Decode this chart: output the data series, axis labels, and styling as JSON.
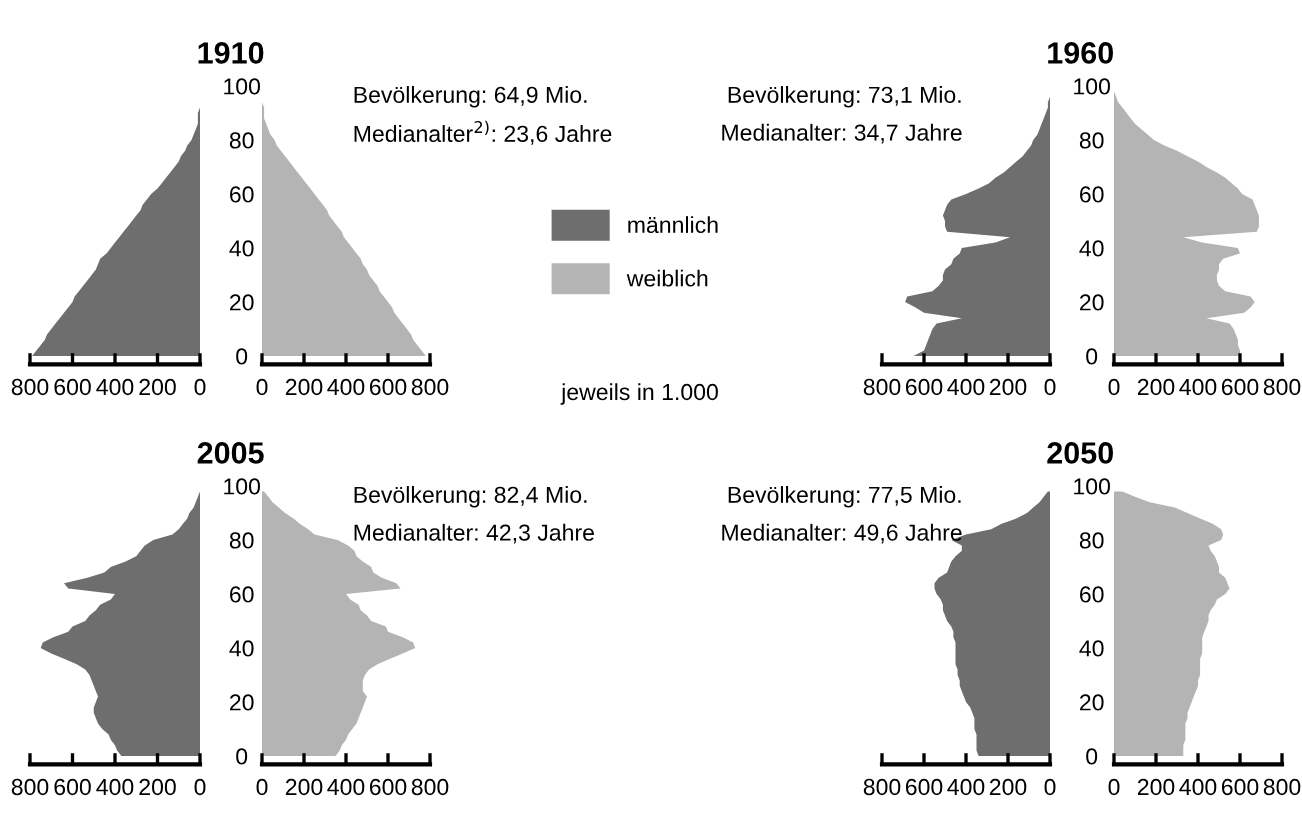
{
  "chart_data": [
    {
      "type": "area",
      "orientation": "horizontal",
      "title": "1910",
      "x": [
        0,
        2,
        4,
        6,
        8,
        10,
        12,
        14,
        16,
        18,
        20,
        22,
        24,
        26,
        28,
        30,
        32,
        34,
        36,
        38,
        40,
        42,
        44,
        46,
        48,
        50,
        52,
        54,
        56,
        58,
        60,
        62,
        64,
        66,
        68,
        70,
        72,
        74,
        76,
        78,
        80,
        82,
        84,
        86,
        88,
        90,
        92,
        94,
        96,
        98
      ],
      "xlim": [
        800,
        0
      ],
      "xticks": [
        800,
        600,
        400,
        200,
        0
      ],
      "ylim": [
        0,
        100
      ],
      "yticks": [
        0,
        20,
        40,
        60,
        80,
        100
      ],
      "series": [
        {
          "name": "männlich",
          "color": "#6e6e6e",
          "values": [
            790,
            770,
            750,
            730,
            720,
            700,
            680,
            660,
            640,
            620,
            600,
            590,
            570,
            550,
            530,
            510,
            490,
            480,
            470,
            440,
            420,
            400,
            380,
            360,
            340,
            320,
            300,
            280,
            270,
            250,
            230,
            200,
            180,
            160,
            140,
            120,
            100,
            90,
            70,
            60,
            40,
            30,
            20,
            10,
            10,
            10,
            0,
            0,
            0,
            0
          ]
        }
      ]
    },
    {
      "type": "area",
      "orientation": "horizontal",
      "x": [
        0,
        2,
        4,
        6,
        8,
        10,
        12,
        14,
        16,
        18,
        20,
        22,
        24,
        26,
        28,
        30,
        32,
        34,
        36,
        38,
        40,
        42,
        44,
        46,
        48,
        50,
        52,
        54,
        56,
        58,
        60,
        62,
        64,
        66,
        68,
        70,
        72,
        74,
        76,
        78,
        80,
        82,
        84,
        86,
        88,
        90,
        92,
        94,
        96,
        98
      ],
      "xlim": [
        0,
        800
      ],
      "xticks": [
        0,
        200,
        400,
        600,
        800
      ],
      "ylim": [
        0,
        100
      ],
      "yticks": [
        0,
        20,
        40,
        60,
        80,
        100
      ],
      "tick_labels": "x",
      "legend": "right",
      "annotations": [
        "Bevölkerung: 64,9 Mio.",
        "Medianalter$^{2)}$: 23,6 Jahre",
        "jeweils in 1.000"
      ],
      "series": [
        {
          "name": "weiblich",
          "color": "#b4b4b4",
          "values": [
            780,
            760,
            740,
            720,
            710,
            690,
            670,
            650,
            630,
            620,
            600,
            580,
            560,
            550,
            530,
            510,
            500,
            480,
            470,
            450,
            430,
            410,
            390,
            380,
            360,
            340,
            320,
            310,
            290,
            270,
            250,
            230,
            210,
            190,
            170,
            150,
            130,
            110,
            90,
            70,
            60,
            40,
            30,
            20,
            10,
            10,
            10,
            0,
            0,
            0
          ]
        }
      ]
    },
    {
      "type": "area",
      "orientation": "horizontal",
      "title": "1960",
      "x": [
        0,
        2,
        4,
        6,
        8,
        10,
        12,
        14,
        16,
        18,
        20,
        22,
        24,
        26,
        28,
        30,
        32,
        34,
        36,
        38,
        40,
        42,
        44,
        46,
        48,
        50,
        52,
        54,
        56,
        58,
        60,
        62,
        64,
        66,
        68,
        70,
        72,
        74,
        76,
        78,
        80,
        82,
        84,
        86,
        88,
        90,
        92,
        94,
        96,
        98
      ],
      "xlim": [
        800,
        0
      ],
      "xticks": [
        800,
        600,
        400,
        200,
        0
      ],
      "ylim": [
        0,
        100
      ],
      "yticks": [
        0,
        20,
        40,
        60,
        80,
        100
      ],
      "annotations": [
        "Bevölkerung: 73,1 Mio.",
        "Medianalter: 34,7 Jahre"
      ],
      "series": [
        {
          "color": "#6e6e6e",
          "values": [
            650,
            600,
            590,
            580,
            570,
            560,
            540,
            420,
            600,
            640,
            690,
            680,
            560,
            530,
            510,
            510,
            500,
            470,
            460,
            430,
            420,
            260,
            190,
            490,
            500,
            500,
            510,
            500,
            490,
            470,
            400,
            340,
            290,
            260,
            220,
            190,
            160,
            130,
            110,
            90,
            80,
            60,
            50,
            40,
            30,
            20,
            10,
            10,
            0,
            0
          ]
        }
      ]
    },
    {
      "type": "area",
      "orientation": "horizontal",
      "x": [
        0,
        2,
        4,
        6,
        8,
        10,
        12,
        14,
        16,
        18,
        20,
        22,
        24,
        26,
        28,
        30,
        32,
        34,
        36,
        38,
        40,
        42,
        44,
        46,
        48,
        50,
        52,
        54,
        56,
        58,
        60,
        62,
        64,
        66,
        68,
        70,
        72,
        74,
        76,
        78,
        80,
        82,
        84,
        86,
        88,
        90,
        92,
        94,
        96,
        98
      ],
      "xlim": [
        0,
        800
      ],
      "xticks": [
        0,
        200,
        400,
        600,
        800
      ],
      "ylim": [
        0,
        100
      ],
      "yticks": [
        0,
        20,
        40,
        60,
        80,
        100
      ],
      "tick_labels": "x",
      "series": [
        {
          "color": "#b4b4b4",
          "values": [
            600,
            600,
            590,
            590,
            580,
            570,
            550,
            440,
            620,
            650,
            670,
            650,
            530,
            500,
            490,
            490,
            500,
            500,
            520,
            600,
            590,
            420,
            330,
            680,
            690,
            690,
            690,
            680,
            670,
            660,
            610,
            590,
            560,
            530,
            490,
            440,
            400,
            350,
            300,
            240,
            190,
            160,
            130,
            100,
            80,
            60,
            40,
            20,
            10,
            0
          ]
        }
      ]
    },
    {
      "type": "area",
      "orientation": "horizontal",
      "title": "2005",
      "x": [
        0,
        2,
        4,
        6,
        8,
        10,
        12,
        14,
        16,
        18,
        20,
        22,
        24,
        26,
        28,
        30,
        32,
        34,
        36,
        38,
        40,
        42,
        44,
        46,
        48,
        50,
        52,
        54,
        56,
        58,
        60,
        62,
        64,
        66,
        68,
        70,
        72,
        74,
        76,
        78,
        80,
        82,
        84,
        86,
        88,
        90,
        92,
        94,
        96,
        98
      ],
      "xlim": [
        800,
        0
      ],
      "xticks": [
        800,
        600,
        400,
        200,
        0
      ],
      "ylim": [
        0,
        100
      ],
      "yticks": [
        0,
        20,
        40,
        60,
        80,
        100
      ],
      "series": [
        {
          "color": "#6e6e6e",
          "values": [
            370,
            390,
            400,
            420,
            430,
            460,
            480,
            490,
            500,
            500,
            490,
            480,
            490,
            500,
            510,
            520,
            540,
            580,
            640,
            700,
            750,
            740,
            690,
            620,
            600,
            540,
            520,
            490,
            470,
            420,
            400,
            620,
            640,
            530,
            450,
            420,
            350,
            300,
            280,
            260,
            220,
            130,
            100,
            80,
            60,
            50,
            30,
            20,
            10,
            0
          ]
        }
      ]
    },
    {
      "type": "area",
      "orientation": "horizontal",
      "x": [
        0,
        2,
        4,
        6,
        8,
        10,
        12,
        14,
        16,
        18,
        20,
        22,
        24,
        26,
        28,
        30,
        32,
        34,
        36,
        38,
        40,
        42,
        44,
        46,
        48,
        50,
        52,
        54,
        56,
        58,
        60,
        62,
        64,
        66,
        68,
        70,
        72,
        74,
        76,
        78,
        80,
        82,
        84,
        86,
        88,
        90,
        92,
        94,
        96,
        98
      ],
      "xlim": [
        0,
        800
      ],
      "xticks": [
        0,
        200,
        400,
        600,
        800
      ],
      "ylim": [
        0,
        100
      ],
      "yticks": [
        0,
        20,
        40,
        60,
        80,
        100
      ],
      "tick_labels": "x",
      "annotations": [
        "Bevölkerung: 82,4 Mio.",
        "Medianalter: 42,3 Jahre"
      ],
      "series": [
        {
          "color": "#b4b4b4",
          "values": [
            350,
            370,
            380,
            400,
            410,
            430,
            450,
            460,
            470,
            480,
            490,
            500,
            480,
            480,
            480,
            490,
            510,
            550,
            610,
            670,
            730,
            720,
            670,
            600,
            590,
            520,
            500,
            470,
            460,
            420,
            400,
            660,
            640,
            570,
            530,
            520,
            480,
            450,
            440,
            410,
            360,
            250,
            220,
            180,
            150,
            110,
            80,
            50,
            30,
            10
          ]
        }
      ]
    },
    {
      "type": "area",
      "orientation": "horizontal",
      "title": "2050",
      "x": [
        0,
        2,
        4,
        6,
        8,
        10,
        12,
        14,
        16,
        18,
        20,
        22,
        24,
        26,
        28,
        30,
        32,
        34,
        36,
        38,
        40,
        42,
        44,
        46,
        48,
        50,
        52,
        54,
        56,
        58,
        60,
        62,
        64,
        66,
        68,
        70,
        72,
        74,
        76,
        78,
        80,
        82,
        84,
        86,
        88,
        90,
        92,
        94,
        96,
        98
      ],
      "xlim": [
        800,
        0
      ],
      "xticks": [
        800,
        600,
        400,
        200,
        0
      ],
      "ylim": [
        0,
        100
      ],
      "yticks": [
        0,
        20,
        40,
        60,
        80,
        100
      ],
      "annotations": [
        "Bevölkerung: 77,5 Mio.",
        "Medianalter: 49,6 Jahre"
      ],
      "series": [
        {
          "color": "#6e6e6e",
          "values": [
            340,
            350,
            350,
            350,
            350,
            360,
            360,
            360,
            370,
            380,
            400,
            410,
            420,
            430,
            430,
            440,
            440,
            450,
            450,
            450,
            450,
            450,
            460,
            460,
            470,
            490,
            500,
            510,
            510,
            520,
            540,
            550,
            550,
            530,
            490,
            480,
            470,
            450,
            420,
            420,
            470,
            400,
            280,
            230,
            160,
            110,
            80,
            50,
            30,
            10
          ]
        }
      ]
    },
    {
      "type": "area",
      "orientation": "horizontal",
      "x": [
        0,
        2,
        4,
        6,
        8,
        10,
        12,
        14,
        16,
        18,
        20,
        22,
        24,
        26,
        28,
        30,
        32,
        34,
        36,
        38,
        40,
        42,
        44,
        46,
        48,
        50,
        52,
        54,
        56,
        58,
        60,
        62,
        64,
        66,
        68,
        70,
        72,
        74,
        76,
        78,
        80,
        82,
        84,
        86,
        88,
        90,
        92,
        94,
        96,
        98
      ],
      "xlim": [
        0,
        800
      ],
      "xticks": [
        0,
        200,
        400,
        600,
        800
      ],
      "ylim": [
        0,
        100
      ],
      "yticks": [
        0,
        20,
        40,
        60,
        80,
        100
      ],
      "tick_labels": "x",
      "series": [
        {
          "color": "#b4b4b4",
          "values": [
            330,
            330,
            330,
            340,
            340,
            340,
            340,
            350,
            350,
            360,
            370,
            380,
            390,
            400,
            400,
            410,
            410,
            410,
            410,
            420,
            420,
            420,
            420,
            430,
            440,
            450,
            450,
            460,
            480,
            490,
            530,
            550,
            540,
            530,
            500,
            500,
            490,
            480,
            460,
            450,
            510,
            520,
            510,
            470,
            410,
            350,
            290,
            170,
            100,
            40
          ]
        }
      ]
    }
  ]
}
